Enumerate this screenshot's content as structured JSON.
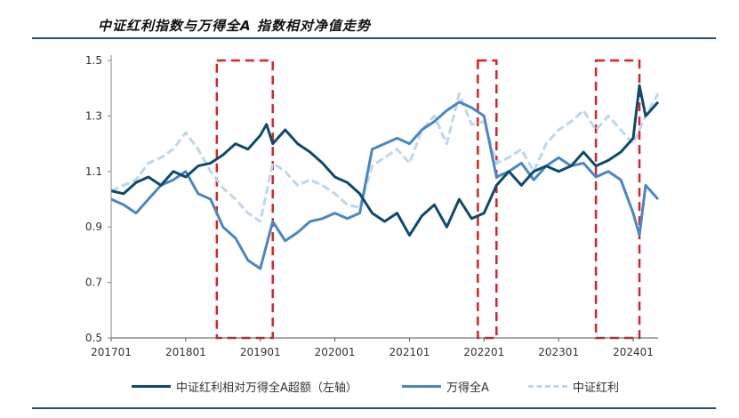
{
  "title": "中证红利指数与万得全A 指数相对净值走势",
  "chart_data": {
    "type": "line",
    "title": "中证红利指数与万得全A 指数相对净值走势",
    "xlabel": "",
    "ylabel": "",
    "x_range": [
      "2017-01",
      "2024-05"
    ],
    "ylim": [
      0.5,
      1.5
    ],
    "y_ticks": [
      "0.5",
      "0.7",
      "0.9",
      "1.1",
      "1.3",
      "1.5"
    ],
    "x_ticks": [
      "201701",
      "201801",
      "201901",
      "202001",
      "202101",
      "202201",
      "202301",
      "202401"
    ],
    "grid": false,
    "legend_position": "bottom",
    "series": [
      {
        "name": "中证红利相对万得全A超额（左轴）",
        "color": "#0d4a6b",
        "style": "solid",
        "points": [
          [
            "2017-01",
            1.03
          ],
          [
            "2017-03",
            1.02
          ],
          [
            "2017-05",
            1.06
          ],
          [
            "2017-07",
            1.08
          ],
          [
            "2017-09",
            1.05
          ],
          [
            "2017-11",
            1.1
          ],
          [
            "2018-01",
            1.08
          ],
          [
            "2018-03",
            1.12
          ],
          [
            "2018-05",
            1.13
          ],
          [
            "2018-07",
            1.16
          ],
          [
            "2018-09",
            1.2
          ],
          [
            "2018-11",
            1.18
          ],
          [
            "2019-01",
            1.23
          ],
          [
            "2019-02",
            1.27
          ],
          [
            "2019-03",
            1.2
          ],
          [
            "2019-05",
            1.25
          ],
          [
            "2019-07",
            1.2
          ],
          [
            "2019-09",
            1.17
          ],
          [
            "2019-11",
            1.13
          ],
          [
            "2020-01",
            1.08
          ],
          [
            "2020-03",
            1.06
          ],
          [
            "2020-05",
            1.02
          ],
          [
            "2020-07",
            0.95
          ],
          [
            "2020-09",
            0.92
          ],
          [
            "2020-11",
            0.95
          ],
          [
            "2021-01",
            0.87
          ],
          [
            "2021-03",
            0.94
          ],
          [
            "2021-05",
            0.98
          ],
          [
            "2021-07",
            0.9
          ],
          [
            "2021-09",
            1.0
          ],
          [
            "2021-11",
            0.93
          ],
          [
            "2022-01",
            0.95
          ],
          [
            "2022-03",
            1.05
          ],
          [
            "2022-05",
            1.1
          ],
          [
            "2022-07",
            1.05
          ],
          [
            "2022-09",
            1.1
          ],
          [
            "2022-11",
            1.12
          ],
          [
            "2023-01",
            1.1
          ],
          [
            "2023-03",
            1.12
          ],
          [
            "2023-05",
            1.17
          ],
          [
            "2023-07",
            1.12
          ],
          [
            "2023-09",
            1.14
          ],
          [
            "2023-11",
            1.17
          ],
          [
            "2024-01",
            1.22
          ],
          [
            "2024-02",
            1.41
          ],
          [
            "2024-03",
            1.3
          ],
          [
            "2024-05",
            1.35
          ]
        ]
      },
      {
        "name": "万得全A",
        "color": "#4a86c6",
        "style": "solid",
        "points": [
          [
            "2017-01",
            1.0
          ],
          [
            "2017-03",
            0.98
          ],
          [
            "2017-05",
            0.95
          ],
          [
            "2017-07",
            1.0
          ],
          [
            "2017-09",
            1.05
          ],
          [
            "2017-11",
            1.07
          ],
          [
            "2018-01",
            1.1
          ],
          [
            "2018-03",
            1.02
          ],
          [
            "2018-05",
            1.0
          ],
          [
            "2018-07",
            0.9
          ],
          [
            "2018-09",
            0.86
          ],
          [
            "2018-11",
            0.78
          ],
          [
            "2019-01",
            0.75
          ],
          [
            "2019-03",
            0.92
          ],
          [
            "2019-05",
            0.85
          ],
          [
            "2019-07",
            0.88
          ],
          [
            "2019-09",
            0.92
          ],
          [
            "2019-11",
            0.93
          ],
          [
            "2020-01",
            0.95
          ],
          [
            "2020-03",
            0.93
          ],
          [
            "2020-05",
            0.95
          ],
          [
            "2020-07",
            1.18
          ],
          [
            "2020-09",
            1.2
          ],
          [
            "2020-11",
            1.22
          ],
          [
            "2021-01",
            1.2
          ],
          [
            "2021-03",
            1.25
          ],
          [
            "2021-05",
            1.28
          ],
          [
            "2021-07",
            1.32
          ],
          [
            "2021-09",
            1.35
          ],
          [
            "2021-11",
            1.33
          ],
          [
            "2022-01",
            1.3
          ],
          [
            "2022-03",
            1.08
          ],
          [
            "2022-05",
            1.1
          ],
          [
            "2022-07",
            1.13
          ],
          [
            "2022-09",
            1.07
          ],
          [
            "2022-11",
            1.12
          ],
          [
            "2023-01",
            1.15
          ],
          [
            "2023-03",
            1.12
          ],
          [
            "2023-05",
            1.13
          ],
          [
            "2023-07",
            1.08
          ],
          [
            "2023-09",
            1.1
          ],
          [
            "2023-11",
            1.07
          ],
          [
            "2024-01",
            0.95
          ],
          [
            "2024-02",
            0.87
          ],
          [
            "2024-03",
            1.05
          ],
          [
            "2024-05",
            1.0
          ]
        ]
      },
      {
        "name": "中证红利",
        "color": "#bcd7ee",
        "style": "dashed",
        "points": [
          [
            "2017-01",
            1.03
          ],
          [
            "2017-03",
            1.05
          ],
          [
            "2017-05",
            1.07
          ],
          [
            "2017-07",
            1.13
          ],
          [
            "2017-09",
            1.15
          ],
          [
            "2017-11",
            1.18
          ],
          [
            "2018-01",
            1.24
          ],
          [
            "2018-03",
            1.18
          ],
          [
            "2018-05",
            1.1
          ],
          [
            "2018-07",
            1.04
          ],
          [
            "2018-09",
            1.0
          ],
          [
            "2018-11",
            0.95
          ],
          [
            "2019-01",
            0.92
          ],
          [
            "2019-03",
            1.13
          ],
          [
            "2019-05",
            1.1
          ],
          [
            "2019-07",
            1.05
          ],
          [
            "2019-09",
            1.07
          ],
          [
            "2019-11",
            1.05
          ],
          [
            "2020-01",
            1.02
          ],
          [
            "2020-03",
            0.98
          ],
          [
            "2020-05",
            0.97
          ],
          [
            "2020-07",
            1.12
          ],
          [
            "2020-09",
            1.15
          ],
          [
            "2020-11",
            1.18
          ],
          [
            "2021-01",
            1.13
          ],
          [
            "2021-03",
            1.25
          ],
          [
            "2021-05",
            1.3
          ],
          [
            "2021-07",
            1.2
          ],
          [
            "2021-09",
            1.38
          ],
          [
            "2021-11",
            1.27
          ],
          [
            "2022-01",
            1.28
          ],
          [
            "2022-03",
            1.13
          ],
          [
            "2022-05",
            1.15
          ],
          [
            "2022-07",
            1.18
          ],
          [
            "2022-09",
            1.1
          ],
          [
            "2022-11",
            1.2
          ],
          [
            "2023-01",
            1.25
          ],
          [
            "2023-03",
            1.28
          ],
          [
            "2023-05",
            1.32
          ],
          [
            "2023-07",
            1.25
          ],
          [
            "2023-09",
            1.3
          ],
          [
            "2023-11",
            1.25
          ],
          [
            "2024-01",
            1.2
          ],
          [
            "2024-03",
            1.3
          ],
          [
            "2024-05",
            1.38
          ]
        ]
      }
    ],
    "annotations": [
      {
        "type": "dashed-rectangle",
        "color": "#e02020",
        "x_start": "2018-06",
        "x_end": "2019-03",
        "y_start": 0.5,
        "y_end": 1.5
      },
      {
        "type": "dashed-rectangle",
        "color": "#e02020",
        "x_start": "2021-12",
        "x_end": "2022-03",
        "y_start": 0.5,
        "y_end": 1.5
      },
      {
        "type": "dashed-rectangle",
        "color": "#e02020",
        "x_start": "2023-07",
        "x_end": "2024-02",
        "y_start": 0.5,
        "y_end": 1.5
      }
    ]
  }
}
